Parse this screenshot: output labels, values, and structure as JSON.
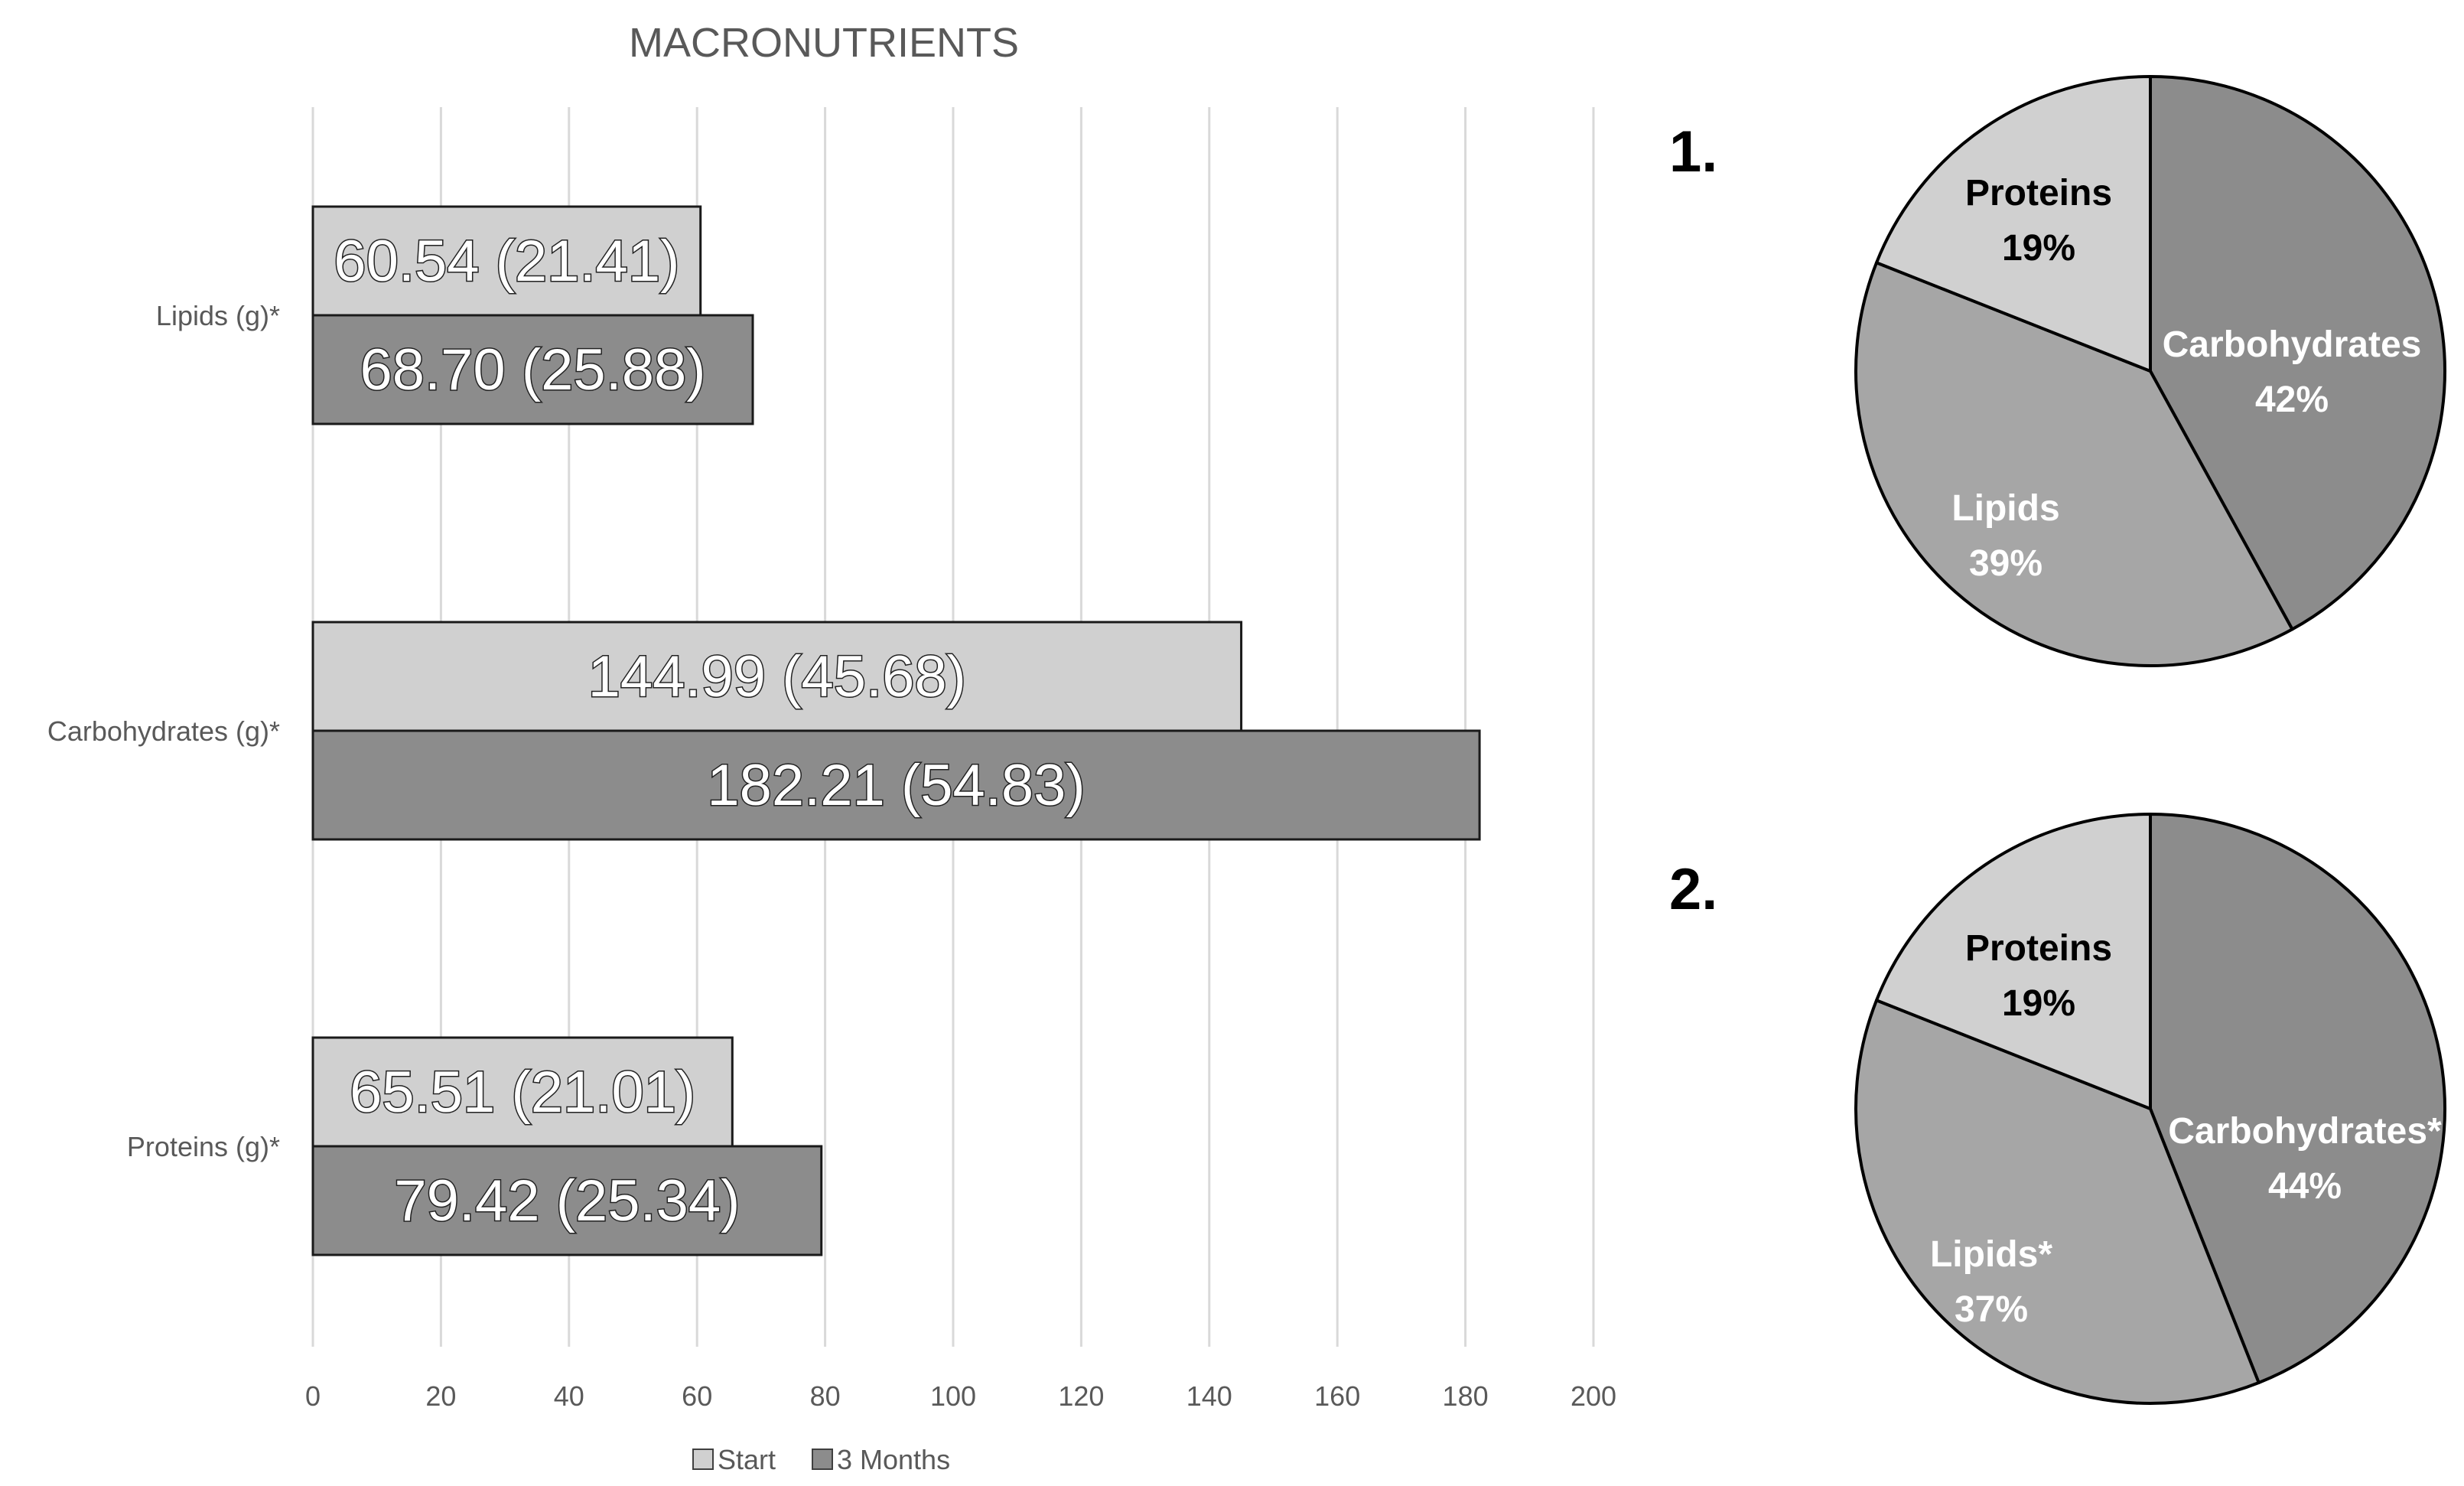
{
  "chart_data": [
    {
      "type": "bar",
      "orientation": "horizontal",
      "title": "MACRONUTRIENTS",
      "categories": [
        "Lipids (g)*",
        "Carbohydrates (g)*",
        "Proteins (g)*"
      ],
      "series": [
        {
          "name": "Start",
          "color": "#d0d0d0",
          "values": [
            60.54,
            144.99,
            65.51
          ],
          "labels": [
            "60.54 (21.41)",
            "144.99 (45.68)",
            "65.51 (21.01)"
          ]
        },
        {
          "name": "3 Months",
          "color": "#8c8c8c",
          "values": [
            68.7,
            182.21,
            79.42
          ],
          "labels": [
            "68.70 (25.88)",
            "182.21 (54.83)",
            "79.42 (25.34)"
          ]
        }
      ],
      "xlim": [
        0,
        200
      ],
      "xticks": [
        "0",
        "20",
        "40",
        "60",
        "80",
        "100",
        "120",
        "140",
        "160",
        "180",
        "200"
      ],
      "grid": true,
      "legend_position": "bottom"
    },
    {
      "type": "pie",
      "panel_label": "1.",
      "slices": [
        {
          "label": "Carbohydrates",
          "value": 42,
          "value_label": "42%",
          "color": "#8c8c8c",
          "text_color": "#ffffff"
        },
        {
          "label": "Lipids",
          "value": 39,
          "value_label": "39%",
          "color": "#a6a6a6",
          "text_color": "#ffffff"
        },
        {
          "label": "Proteins",
          "value": 19,
          "value_label": "19%",
          "color": "#d0d0d0",
          "text_color": "#000000"
        }
      ]
    },
    {
      "type": "pie",
      "panel_label": "2.",
      "slices": [
        {
          "label": "Carbohydrates*",
          "value": 44,
          "value_label": "44%",
          "color": "#8c8c8c",
          "text_color": "#ffffff"
        },
        {
          "label": "Lipids*",
          "value": 37,
          "value_label": "37%",
          "color": "#a6a6a6",
          "text_color": "#ffffff"
        },
        {
          "label": "Proteins",
          "value": 19,
          "value_label": "19%",
          "color": "#d0d0d0",
          "text_color": "#000000"
        }
      ]
    }
  ]
}
